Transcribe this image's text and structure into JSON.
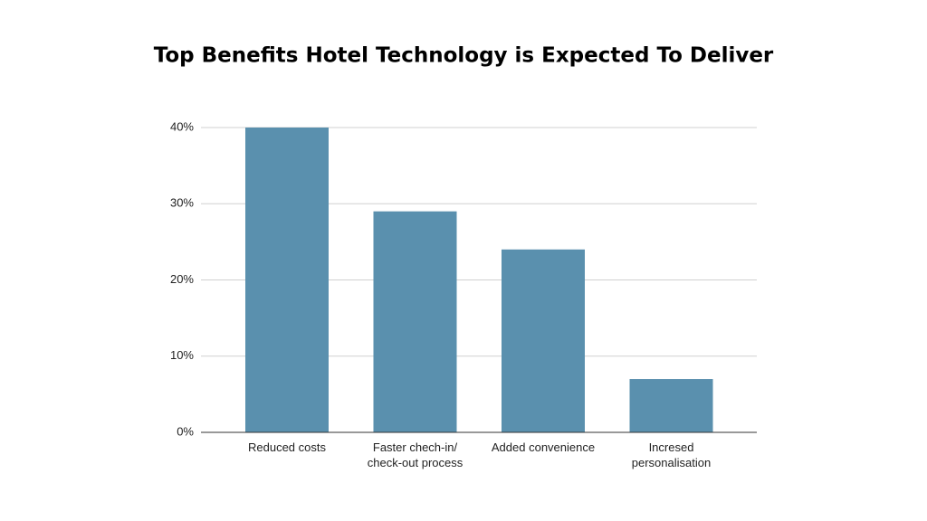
{
  "chart_data": {
    "type": "bar",
    "title": "Top Benefits Hotel Technology is Expected To Deliver",
    "categories": [
      "Reduced costs",
      "Faster chech-in/ check-out process",
      "Added convenience",
      "Incresed personalisation"
    ],
    "values": [
      40,
      29,
      24,
      7
    ],
    "color": "#5a90ae",
    "ylim": [
      0,
      40
    ],
    "yticks": [
      {
        "value": 0,
        "label": "0%"
      },
      {
        "value": 10,
        "label": "10%"
      },
      {
        "value": 20,
        "label": "20%"
      },
      {
        "value": 30,
        "label": "30%"
      },
      {
        "value": 40,
        "label": "40%"
      }
    ],
    "grid": true
  }
}
